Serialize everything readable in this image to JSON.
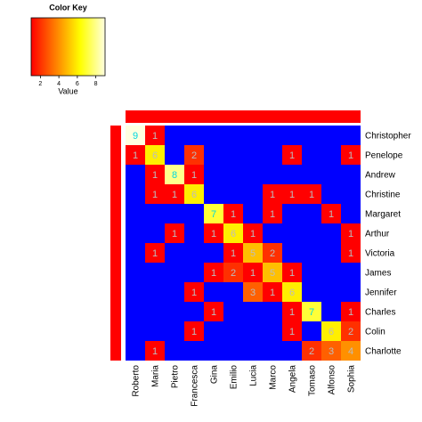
{
  "chart_data": {
    "type": "heatmap",
    "columns": [
      "Roberto",
      "Maria",
      "Pietro",
      "Francesca",
      "Gina",
      "Emilio",
      "Lucia",
      "Marco",
      "Angela",
      "Tomaso",
      "Alfonso",
      "Sophia"
    ],
    "rows": [
      "Christopher",
      "Penelope",
      "Andrew",
      "Christine",
      "Margaret",
      "Arthur",
      "Victoria",
      "James",
      "Jennifer",
      "Charles",
      "Colin",
      "Charlotte"
    ],
    "values": [
      [
        9,
        1,
        0,
        0,
        0,
        0,
        0,
        0,
        0,
        0,
        0,
        0
      ],
      [
        1,
        6,
        0,
        2,
        0,
        0,
        0,
        0,
        1,
        0,
        0,
        1
      ],
      [
        0,
        1,
        8,
        1,
        0,
        0,
        0,
        0,
        0,
        0,
        0,
        0
      ],
      [
        0,
        1,
        1,
        6,
        0,
        0,
        0,
        1,
        1,
        1,
        0,
        0
      ],
      [
        0,
        0,
        0,
        0,
        7,
        1,
        0,
        1,
        0,
        0,
        1,
        0
      ],
      [
        0,
        0,
        1,
        0,
        1,
        6,
        1,
        0,
        0,
        0,
        0,
        1
      ],
      [
        0,
        1,
        0,
        0,
        0,
        1,
        5,
        2,
        0,
        0,
        0,
        1
      ],
      [
        0,
        0,
        0,
        0,
        1,
        2,
        1,
        5,
        1,
        0,
        0,
        0
      ],
      [
        0,
        0,
        0,
        1,
        0,
        0,
        3,
        1,
        6,
        0,
        0,
        0
      ],
      [
        0,
        0,
        0,
        0,
        1,
        0,
        0,
        0,
        1,
        7,
        0,
        1
      ],
      [
        0,
        0,
        0,
        1,
        0,
        0,
        0,
        0,
        1,
        0,
        6,
        2
      ],
      [
        0,
        1,
        0,
        0,
        0,
        0,
        0,
        0,
        0,
        2,
        3,
        4
      ]
    ],
    "zero_color": "#0000ff",
    "colorscale": [
      "#ff0000",
      "#ff8000",
      "#ffff00",
      "#ffffe0"
    ],
    "side_color": "#ff0000",
    "key": {
      "title": "Color Key",
      "xlabel": "Value",
      "xlim": [
        1,
        9
      ],
      "xticks": [
        2,
        4,
        6,
        8
      ]
    }
  }
}
